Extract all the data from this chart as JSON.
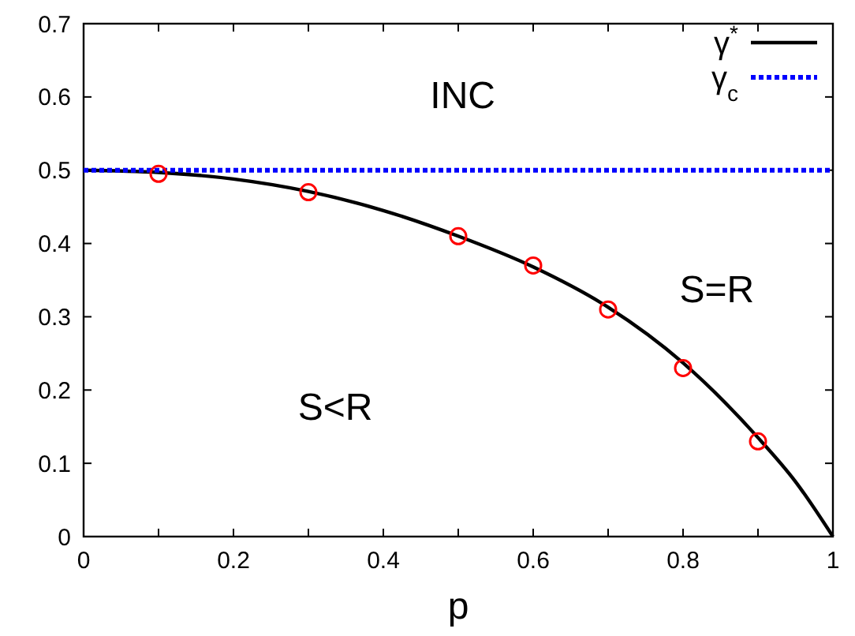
{
  "chart_data": {
    "type": "line",
    "xlabel": "p",
    "xlim": [
      0,
      1
    ],
    "ylim": [
      0,
      0.7
    ],
    "xticks": [
      0,
      {
        "value": 0.1,
        "label": null
      },
      0.2,
      {
        "value": 0.3,
        "label": null
      },
      0.4,
      {
        "value": 0.5,
        "label": null
      },
      0.6,
      {
        "value": 0.7,
        "label": null
      },
      0.8,
      {
        "value": 0.9,
        "label": null
      },
      1
    ],
    "yticks": [
      0,
      0.1,
      0.2,
      0.3,
      0.4,
      0.5,
      0.6,
      0.7
    ],
    "grid": false,
    "legend": "top right",
    "series": [
      {
        "name": "γ$^{*}$",
        "color": "#000000",
        "line_style": "solid",
        "x": [
          0,
          0.1,
          0.2,
          0.3,
          0.4,
          0.5,
          0.6,
          0.7,
          0.8,
          0.9,
          0.95,
          1
        ],
        "values": [
          0.5,
          0.497,
          0.488,
          0.471,
          0.445,
          0.41,
          0.368,
          0.313,
          0.237,
          0.135,
          0.075,
          0
        ]
      },
      {
        "name": "γ$_{c}$",
        "color": "#0000ff",
        "line_style": "dotted",
        "x": [
          0,
          1
        ],
        "values": [
          0.5,
          0.5
        ]
      },
      {
        "type": "scatter",
        "color": "#ff0000",
        "marker": "circle",
        "x": [
          0.1,
          0.3,
          0.5,
          0.6,
          0.7,
          0.8,
          0.9
        ],
        "values": [
          0.495,
          0.47,
          0.41,
          0.37,
          0.31,
          0.23,
          0.13
        ]
      }
    ],
    "annotations": [
      "INC",
      "S=R",
      "S<R"
    ]
  }
}
